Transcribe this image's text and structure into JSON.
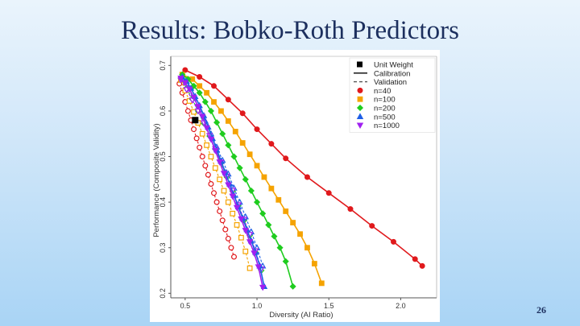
{
  "slide": {
    "title": "Results: Bobko-Roth Predictors",
    "page_number": "26"
  },
  "chart_data": {
    "type": "line",
    "xlabel": "Diversity (AI Ratio)",
    "ylabel": "Performance (Composite Validity)",
    "xlim": [
      0.4,
      2.25
    ],
    "ylim": [
      0.19,
      0.72
    ],
    "xticks": [
      "0.5",
      "1.0",
      "1.5",
      "2.0"
    ],
    "yticks": [
      "0.2",
      "0.3",
      "0.4",
      "0.5",
      "0.6",
      "0.7"
    ],
    "legend_position": "top-right",
    "legend": [
      {
        "label": "Unit Weight",
        "kind": "marker",
        "symbol": "square",
        "color": "#000000"
      },
      {
        "label": "Calibration",
        "kind": "line",
        "dash": "solid",
        "color": "#000000"
      },
      {
        "label": "Validation",
        "kind": "line",
        "dash": "dashed",
        "color": "#555555"
      },
      {
        "label": "n=40",
        "kind": "marker",
        "symbol": "circle",
        "color": "#e0191c"
      },
      {
        "label": "n=100",
        "kind": "marker",
        "symbol": "square",
        "color": "#f5a300"
      },
      {
        "label": "n=200",
        "kind": "marker",
        "symbol": "diamond",
        "color": "#1fcc1f"
      },
      {
        "label": "n=500",
        "kind": "marker",
        "symbol": "triangle",
        "color": "#1f5fe6"
      },
      {
        "label": "n=1000",
        "kind": "marker",
        "symbol": "triangle-down",
        "color": "#a020f0"
      }
    ],
    "unit_weight_point": {
      "x": 0.57,
      "y": 0.58
    },
    "series": [
      {
        "name": "n=40",
        "kind": "calibration",
        "symbol": "circle",
        "color": "#e0191c",
        "x": [
          0.5,
          0.6,
          0.7,
          0.8,
          0.9,
          1.0,
          1.1,
          1.2,
          1.35,
          1.5,
          1.65,
          1.8,
          1.95,
          2.1,
          2.15
        ],
        "y": [
          0.69,
          0.675,
          0.655,
          0.625,
          0.595,
          0.56,
          0.528,
          0.496,
          0.455,
          0.42,
          0.385,
          0.348,
          0.313,
          0.275,
          0.26
        ]
      },
      {
        "name": "n=100",
        "kind": "calibration",
        "symbol": "square",
        "color": "#f5a300",
        "x": [
          0.48,
          0.55,
          0.6,
          0.65,
          0.7,
          0.75,
          0.8,
          0.85,
          0.9,
          0.95,
          1.0,
          1.05,
          1.1,
          1.15,
          1.2,
          1.25,
          1.3,
          1.35,
          1.4,
          1.45
        ],
        "y": [
          0.68,
          0.67,
          0.655,
          0.64,
          0.62,
          0.6,
          0.578,
          0.555,
          0.53,
          0.505,
          0.48,
          0.455,
          0.43,
          0.405,
          0.38,
          0.355,
          0.33,
          0.3,
          0.265,
          0.222
        ]
      },
      {
        "name": "n=200",
        "kind": "calibration",
        "symbol": "diamond",
        "color": "#1fcc1f",
        "x": [
          0.48,
          0.52,
          0.56,
          0.6,
          0.64,
          0.68,
          0.72,
          0.76,
          0.8,
          0.84,
          0.88,
          0.92,
          0.96,
          1.0,
          1.04,
          1.08,
          1.12,
          1.16,
          1.2,
          1.25
        ],
        "y": [
          0.68,
          0.67,
          0.655,
          0.64,
          0.62,
          0.6,
          0.575,
          0.55,
          0.525,
          0.5,
          0.475,
          0.45,
          0.425,
          0.4,
          0.375,
          0.35,
          0.325,
          0.3,
          0.27,
          0.215
        ]
      },
      {
        "name": "n=500",
        "kind": "calibration",
        "symbol": "triangle",
        "color": "#1f5fe6",
        "x": [
          0.48,
          0.51,
          0.54,
          0.57,
          0.6,
          0.63,
          0.66,
          0.69,
          0.72,
          0.75,
          0.78,
          0.81,
          0.84,
          0.87,
          0.9,
          0.93,
          0.96,
          0.99,
          1.02,
          1.05
        ],
        "y": [
          0.675,
          0.665,
          0.65,
          0.632,
          0.612,
          0.59,
          0.565,
          0.54,
          0.515,
          0.49,
          0.465,
          0.44,
          0.415,
          0.39,
          0.365,
          0.34,
          0.315,
          0.29,
          0.26,
          0.215
        ]
      },
      {
        "name": "n=1000",
        "kind": "calibration",
        "symbol": "triangle-down",
        "color": "#a020f0",
        "x": [
          0.47,
          0.5,
          0.53,
          0.56,
          0.59,
          0.62,
          0.65,
          0.68,
          0.71,
          0.74,
          0.77,
          0.8,
          0.83,
          0.86,
          0.89,
          0.92,
          0.95,
          0.98,
          1.01,
          1.04
        ],
        "y": [
          0.672,
          0.662,
          0.648,
          0.63,
          0.61,
          0.588,
          0.563,
          0.538,
          0.513,
          0.488,
          0.463,
          0.438,
          0.413,
          0.388,
          0.363,
          0.338,
          0.313,
          0.288,
          0.258,
          0.213
        ]
      },
      {
        "name": "n=40",
        "kind": "validation",
        "symbol": "circle",
        "color": "#e0191c",
        "x": [
          0.46,
          0.48,
          0.5,
          0.52,
          0.54,
          0.56,
          0.58,
          0.6,
          0.62,
          0.64,
          0.66,
          0.68,
          0.7,
          0.72,
          0.74,
          0.76,
          0.78,
          0.8,
          0.82,
          0.84
        ],
        "y": [
          0.66,
          0.64,
          0.62,
          0.6,
          0.58,
          0.56,
          0.54,
          0.52,
          0.5,
          0.48,
          0.46,
          0.44,
          0.42,
          0.4,
          0.38,
          0.36,
          0.34,
          0.32,
          0.3,
          0.28
        ]
      },
      {
        "name": "n=100",
        "kind": "validation",
        "symbol": "square",
        "color": "#f5a300",
        "x": [
          0.47,
          0.5,
          0.53,
          0.56,
          0.59,
          0.62,
          0.65,
          0.68,
          0.71,
          0.74,
          0.77,
          0.8,
          0.83,
          0.86,
          0.89,
          0.92,
          0.95
        ],
        "y": [
          0.668,
          0.645,
          0.622,
          0.598,
          0.574,
          0.55,
          0.525,
          0.5,
          0.475,
          0.45,
          0.425,
          0.4,
          0.375,
          0.35,
          0.322,
          0.292,
          0.255
        ]
      },
      {
        "name": "n=200",
        "kind": "validation",
        "symbol": "diamond",
        "color": "#1fcc1f",
        "x": [
          0.47,
          0.51,
          0.55,
          0.59,
          0.63,
          0.67,
          0.71,
          0.75,
          0.79,
          0.83,
          0.87,
          0.91,
          0.95,
          0.99,
          1.03
        ],
        "y": [
          0.672,
          0.65,
          0.626,
          0.6,
          0.573,
          0.545,
          0.516,
          0.486,
          0.455,
          0.424,
          0.392,
          0.36,
          0.327,
          0.29,
          0.25
        ]
      },
      {
        "name": "n=500",
        "kind": "validation",
        "symbol": "triangle",
        "color": "#1f5fe6",
        "x": [
          0.48,
          0.52,
          0.56,
          0.6,
          0.64,
          0.68,
          0.72,
          0.76,
          0.8,
          0.84,
          0.88,
          0.92,
          0.96,
          1.0,
          1.04
        ],
        "y": [
          0.67,
          0.65,
          0.628,
          0.604,
          0.578,
          0.55,
          0.521,
          0.492,
          0.462,
          0.431,
          0.4,
          0.368,
          0.335,
          0.3,
          0.26
        ]
      },
      {
        "name": "n=1000",
        "kind": "validation",
        "symbol": "triangle-down",
        "color": "#a020f0",
        "x": [
          0.47,
          0.51,
          0.55,
          0.59,
          0.63,
          0.67,
          0.71,
          0.75,
          0.79,
          0.83,
          0.87,
          0.91,
          0.95,
          0.99,
          1.03
        ],
        "y": [
          0.668,
          0.647,
          0.624,
          0.6,
          0.574,
          0.546,
          0.517,
          0.487,
          0.457,
          0.426,
          0.394,
          0.362,
          0.329,
          0.293,
          0.253
        ]
      }
    ]
  }
}
